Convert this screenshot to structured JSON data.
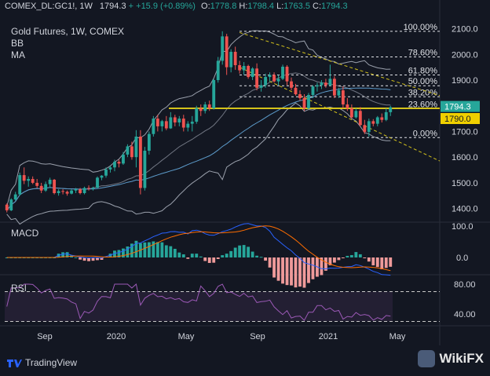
{
  "header": {
    "symbol": "COMEX_DL:GC1!, 1W",
    "last": "1794.3",
    "change": "+15.9 (+0.89%)",
    "o_label": "O:",
    "o": "1778.8",
    "h_label": "H:",
    "h": "1798.4",
    "l_label": "L:",
    "l": "1763.5",
    "c_label": "C:",
    "c": "1794.3"
  },
  "legend": {
    "title": "Gold Futures, 1W, COMEX",
    "bb": "BB",
    "ma": "MA",
    "macd": "MACD",
    "rsi": "RSI"
  },
  "branding": {
    "tradingview": "TradingView",
    "wikifx": "WikiFX"
  },
  "colors": {
    "bg": "#131722",
    "up": "#26a69a",
    "down": "#ef5350",
    "fib": "#e1e3e8",
    "trend": "#d4c21b",
    "bb": "#9aa0ac",
    "ma": "#5d9ccc",
    "rsi": "#9b59b6",
    "macd": "#2962ff",
    "signal": "#ff6d00",
    "price_tag": "#26a69a",
    "level_tag": "#f0d000"
  },
  "chart_data": {
    "type": "candlestick",
    "x_ticks": [
      "Sep",
      "2020",
      "May",
      "Sep",
      "2021",
      "May"
    ],
    "price_axis": {
      "ticks": [
        "2100.0",
        "2000.0",
        "1900.0",
        "1800.0",
        "1700.0",
        "1600.0",
        "1500.0",
        "1400.0"
      ],
      "ylim": [
        1350,
        2120
      ]
    },
    "last_price": "1794.3",
    "horizontal_level": "1790.0",
    "fibonacci": [
      {
        "label": "100.00%",
        "price": 2090
      },
      {
        "label": "78.60%",
        "price": 1990
      },
      {
        "label": "61.80%",
        "price": 1920
      },
      {
        "label": "50.00%",
        "price": 1878
      },
      {
        "label": "38.20%",
        "price": 1835
      },
      {
        "label": "23.60%",
        "price": 1789
      },
      {
        "label": "0.00%",
        "price": 1676
      }
    ],
    "candles_approx": [
      [
        1415,
        1420,
        1385,
        1393
      ],
      [
        1393,
        1440,
        1390,
        1435
      ],
      [
        1435,
        1465,
        1430,
        1455
      ],
      [
        1455,
        1540,
        1450,
        1530
      ],
      [
        1530,
        1560,
        1495,
        1508
      ],
      [
        1508,
        1525,
        1485,
        1515
      ],
      [
        1515,
        1525,
        1495,
        1500
      ],
      [
        1500,
        1515,
        1480,
        1488
      ],
      [
        1488,
        1500,
        1460,
        1470
      ],
      [
        1470,
        1505,
        1465,
        1495
      ],
      [
        1495,
        1520,
        1480,
        1512
      ],
      [
        1512,
        1515,
        1455,
        1460
      ],
      [
        1460,
        1475,
        1450,
        1468
      ],
      [
        1468,
        1475,
        1455,
        1465
      ],
      [
        1465,
        1470,
        1450,
        1458
      ],
      [
        1458,
        1475,
        1455,
        1470
      ],
      [
        1470,
        1480,
        1460,
        1475
      ],
      [
        1475,
        1480,
        1455,
        1460
      ],
      [
        1460,
        1485,
        1455,
        1480
      ],
      [
        1480,
        1490,
        1470,
        1478
      ],
      [
        1478,
        1485,
        1470,
        1481
      ],
      [
        1481,
        1525,
        1478,
        1520
      ],
      [
        1520,
        1530,
        1510,
        1528
      ],
      [
        1528,
        1560,
        1520,
        1552
      ],
      [
        1552,
        1565,
        1540,
        1560
      ],
      [
        1560,
        1590,
        1545,
        1582
      ],
      [
        1582,
        1590,
        1560,
        1575
      ],
      [
        1575,
        1620,
        1570,
        1610
      ],
      [
        1610,
        1650,
        1600,
        1642
      ],
      [
        1642,
        1660,
        1590,
        1600
      ],
      [
        1600,
        1705,
        1560,
        1680
      ],
      [
        1680,
        1705,
        1455,
        1480
      ],
      [
        1480,
        1640,
        1470,
        1625
      ],
      [
        1625,
        1700,
        1610,
        1690
      ],
      [
        1690,
        1760,
        1680,
        1750
      ],
      [
        1750,
        1765,
        1700,
        1720
      ],
      [
        1720,
        1745,
        1700,
        1740
      ],
      [
        1740,
        1760,
        1705,
        1712
      ],
      [
        1712,
        1775,
        1710,
        1755
      ],
      [
        1755,
        1765,
        1720,
        1735
      ],
      [
        1735,
        1760,
        1720,
        1750
      ],
      [
        1750,
        1765,
        1700,
        1715
      ],
      [
        1715,
        1740,
        1700,
        1730
      ],
      [
        1730,
        1760,
        1700,
        1738
      ],
      [
        1738,
        1800,
        1730,
        1790
      ],
      [
        1790,
        1805,
        1760,
        1780
      ],
      [
        1780,
        1815,
        1770,
        1805
      ],
      [
        1805,
        1820,
        1780,
        1790
      ],
      [
        1790,
        1905,
        1785,
        1900
      ],
      [
        1900,
        1990,
        1890,
        1975
      ],
      [
        1975,
        2090,
        1960,
        2070
      ],
      [
        2070,
        2080,
        1920,
        1950
      ],
      [
        1950,
        2020,
        1930,
        2010
      ],
      [
        2010,
        2030,
        1940,
        1958
      ],
      [
        1958,
        1975,
        1925,
        1938
      ],
      [
        1938,
        1970,
        1920,
        1955
      ],
      [
        1955,
        1960,
        1905,
        1912
      ],
      [
        1912,
        1950,
        1900,
        1945
      ],
      [
        1945,
        1965,
        1860,
        1870
      ],
      [
        1870,
        1900,
        1855,
        1880
      ],
      [
        1880,
        1925,
        1870,
        1912
      ],
      [
        1912,
        1930,
        1895,
        1920
      ],
      [
        1920,
        1930,
        1890,
        1895
      ],
      [
        1895,
        1920,
        1880,
        1905
      ],
      [
        1905,
        1960,
        1900,
        1952
      ],
      [
        1952,
        1958,
        1880,
        1895
      ],
      [
        1895,
        1910,
        1860,
        1870
      ],
      [
        1870,
        1885,
        1840,
        1845
      ],
      [
        1845,
        1860,
        1820,
        1830
      ],
      [
        1830,
        1845,
        1780,
        1790
      ],
      [
        1790,
        1850,
        1785,
        1842
      ],
      [
        1842,
        1880,
        1830,
        1875
      ],
      [
        1875,
        1890,
        1855,
        1880
      ],
      [
        1880,
        1900,
        1865,
        1890
      ],
      [
        1890,
        1905,
        1870,
        1880
      ],
      [
        1880,
        1960,
        1875,
        1905
      ],
      [
        1905,
        1915,
        1830,
        1840
      ],
      [
        1840,
        1870,
        1830,
        1860
      ],
      [
        1860,
        1875,
        1790,
        1805
      ],
      [
        1805,
        1830,
        1780,
        1790
      ],
      [
        1790,
        1805,
        1750,
        1755
      ],
      [
        1755,
        1790,
        1750,
        1780
      ],
      [
        1780,
        1795,
        1720,
        1725
      ],
      [
        1725,
        1745,
        1690,
        1698
      ],
      [
        1698,
        1750,
        1680,
        1740
      ],
      [
        1740,
        1748,
        1720,
        1730
      ],
      [
        1730,
        1760,
        1720,
        1755
      ],
      [
        1755,
        1770,
        1735,
        1745
      ],
      [
        1745,
        1790,
        1740,
        1775
      ],
      [
        1775,
        1800,
        1760,
        1794
      ]
    ],
    "macd_axis": [
      "100.0",
      "0.0"
    ],
    "rsi_axis": [
      "80.00",
      "40.00"
    ],
    "rsi_levels": [
      70,
      30
    ]
  }
}
